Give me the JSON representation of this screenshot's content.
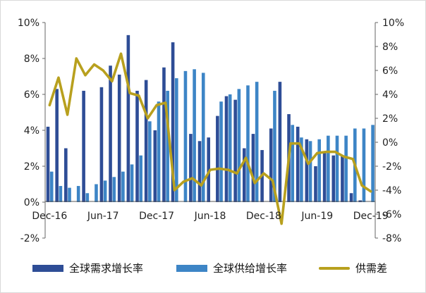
{
  "chart_data": {
    "type": "bar+line",
    "categories": [
      "Dec-16",
      "Jan-17",
      "Feb-17",
      "Mar-17",
      "Apr-17",
      "May-17",
      "Jun-17",
      "Jul-17",
      "Aug-17",
      "Sep-17",
      "Oct-17",
      "Nov-17",
      "Dec-17",
      "Jan-18",
      "Feb-18",
      "Mar-18",
      "Apr-18",
      "May-18",
      "Jun-18",
      "Jul-18",
      "Aug-18",
      "Sep-18",
      "Oct-18",
      "Nov-18",
      "Dec-18",
      "Jan-19",
      "Feb-19",
      "Mar-19",
      "Apr-19",
      "May-19",
      "Jun-19",
      "Jul-19",
      "Aug-19",
      "Sep-19",
      "Oct-19",
      "Nov-19",
      "Dec-19"
    ],
    "x_tick_labels": [
      {
        "index": 0,
        "label": "Dec-16"
      },
      {
        "index": 6,
        "label": "Jun-17"
      },
      {
        "index": 12,
        "label": "Dec-17"
      },
      {
        "index": 18,
        "label": "Jun-18"
      },
      {
        "index": 24,
        "label": "Dec-18"
      },
      {
        "index": 30,
        "label": "Jun-19"
      },
      {
        "index": 36,
        "label": "Dec-19"
      }
    ],
    "y_left": {
      "min": -2,
      "max": 10,
      "ticks": [
        "-2%",
        "0%",
        "2%",
        "4%",
        "6%",
        "8%",
        "10%"
      ],
      "tick_values": [
        -2,
        0,
        2,
        4,
        6,
        8,
        10
      ]
    },
    "y_right": {
      "min": -8,
      "max": 10,
      "ticks": [
        "-8%",
        "-6%",
        "-4%",
        "-2%",
        "0%",
        "2%",
        "4%",
        "6%",
        "8%",
        "10%"
      ],
      "tick_values": [
        -8,
        -6,
        -4,
        -2,
        0,
        2,
        4,
        6,
        8,
        10
      ]
    },
    "series": [
      {
        "name": "全球需求增长率",
        "type": "bar",
        "axis": "left",
        "color": "#2e4d96",
        "values": [
          4.2,
          6.3,
          3.0,
          0,
          6.2,
          0,
          6.4,
          7.6,
          7.1,
          9.3,
          6.2,
          6.8,
          4.0,
          7.5,
          8.9,
          0,
          3.8,
          3.4,
          3.6,
          4.8,
          5.9,
          5.7,
          3.0,
          3.8,
          2.9,
          4.1,
          6.7,
          4.9,
          4.2,
          3.5,
          2.0,
          2.8,
          2.6,
          2.6,
          0.5,
          0.1,
          0
        ]
      },
      {
        "name": "全球供给增长率",
        "type": "bar",
        "axis": "left",
        "color": "#3d85c6",
        "values": [
          1.7,
          0.9,
          0.8,
          0.9,
          0.5,
          1.0,
          1.2,
          1.4,
          1.7,
          2.1,
          2.6,
          4.5,
          5.6,
          6.2,
          6.9,
          7.3,
          7.4,
          7.2,
          0,
          5.6,
          6.0,
          6.3,
          6.5,
          6.7,
          0,
          6.2,
          0,
          4.3,
          3.6,
          3.4,
          3.5,
          3.7,
          3.7,
          3.7,
          4.1,
          4.1,
          4.3
        ]
      },
      {
        "name": "供需差",
        "type": "line",
        "axis": "right",
        "color": "#b8a01e",
        "values": [
          3.1,
          5.4,
          2.3,
          7.0,
          5.6,
          6.5,
          6.0,
          5.1,
          7.4,
          4.1,
          3.9,
          2.0,
          3.1,
          3.3,
          -4.0,
          -3.3,
          -3.0,
          -3.6,
          -2.3,
          -2.2,
          -2.3,
          -2.6,
          -1.3,
          -3.4,
          -2.6,
          -3.2,
          -6.8,
          -0.1,
          -0.1,
          -1.8,
          -0.9,
          -0.8,
          -0.8,
          -1.2,
          -1.4,
          -3.6,
          -4.1
        ]
      }
    ],
    "legend_placement": "bottom",
    "grid": false
  }
}
